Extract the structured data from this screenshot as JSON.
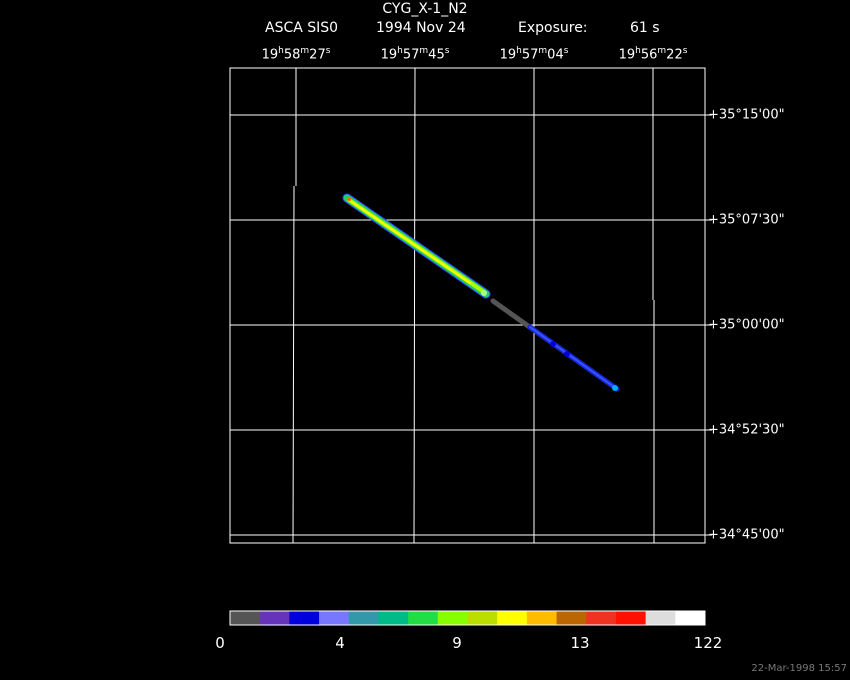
{
  "header": {
    "object": "CYG_X-1_N2",
    "instrument": "ASCA SIS0",
    "date": "1994 Nov 24",
    "exposure_label": "Exposure:",
    "exposure_value": "61 s"
  },
  "ra_ticks": [
    {
      "h": "19",
      "m": "58",
      "s": "27"
    },
    {
      "h": "19",
      "m": "57",
      "s": "45"
    },
    {
      "h": "19",
      "m": "57",
      "s": "04"
    },
    {
      "h": "19",
      "m": "56",
      "s": "22"
    }
  ],
  "dec_ticks": [
    {
      "sign": "+",
      "deg": "35",
      "min": "15",
      "sec": "00"
    },
    {
      "sign": "+",
      "deg": "35",
      "min": "07",
      "sec": "30"
    },
    {
      "sign": "+",
      "deg": "35",
      "min": "00",
      "sec": "00"
    },
    {
      "sign": "+",
      "deg": "34",
      "min": "52",
      "sec": "30"
    },
    {
      "sign": "+",
      "deg": "34",
      "min": "45",
      "sec": "00"
    }
  ],
  "colorbar": {
    "colors": [
      "#555555",
      "#6633bb",
      "#0000dd",
      "#7777ff",
      "#3399aa",
      "#00bb88",
      "#22dd44",
      "#88ff00",
      "#bbdd00",
      "#ffff00",
      "#ffbb00",
      "#bb6600",
      "#ee3322",
      "#ff1100",
      "#dddddd",
      "#ffffff"
    ],
    "labels": [
      "0",
      "4",
      "9",
      "13",
      "122"
    ]
  },
  "footer": {
    "timestamp": "22-Mar-1998 15:57"
  }
}
